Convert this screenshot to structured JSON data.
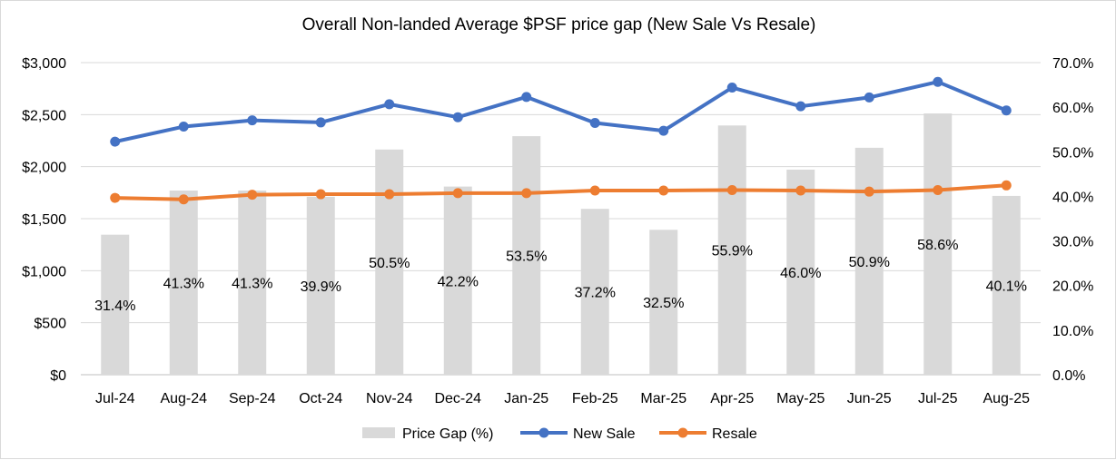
{
  "chart_data": {
    "type": "bar",
    "title": "Overall Non-landed Average $PSF price gap (New Sale Vs Resale)",
    "categories": [
      "Jul-24",
      "Aug-24",
      "Sep-24",
      "Oct-24",
      "Nov-24",
      "Dec-24",
      "Jan-25",
      "Feb-25",
      "Mar-25",
      "Apr-25",
      "May-25",
      "Jun-25",
      "Jul-25",
      "Aug-25"
    ],
    "left_axis": {
      "ylim": [
        0,
        3000
      ],
      "ticks": [
        0,
        500,
        1000,
        1500,
        2000,
        2500,
        3000
      ],
      "tick_labels": [
        "$0",
        "$500",
        "$1,000",
        "$1,500",
        "$2,000",
        "$2,500",
        "$3,000"
      ]
    },
    "right_axis": {
      "ylim": [
        0,
        70
      ],
      "ticks": [
        0,
        10,
        20,
        30,
        40,
        50,
        60,
        70
      ],
      "tick_labels": [
        "0.0%",
        "10.0%",
        "20.0%",
        "30.0%",
        "40.0%",
        "50.0%",
        "60.0%",
        "70.0%"
      ]
    },
    "series": [
      {
        "name": "Price Gap (%)",
        "type": "bar",
        "axis": "right",
        "color": "#d9d9d9",
        "values": [
          31.4,
          41.3,
          41.3,
          39.9,
          50.5,
          42.2,
          53.5,
          37.2,
          32.5,
          55.9,
          46.0,
          50.9,
          58.6,
          40.1
        ],
        "labels": [
          "31.4%",
          "41.3%",
          "41.3%",
          "39.9%",
          "50.5%",
          "42.2%",
          "53.5%",
          "37.2%",
          "32.5%",
          "55.9%",
          "46.0%",
          "50.9%",
          "58.6%",
          "40.1%"
        ]
      },
      {
        "name": "New Sale",
        "type": "line",
        "axis": "left",
        "color": "#4472c4",
        "values": [
          2240,
          2385,
          2445,
          2425,
          2600,
          2475,
          2670,
          2420,
          2345,
          2760,
          2580,
          2665,
          2815,
          2540
        ]
      },
      {
        "name": "Resale",
        "type": "line",
        "axis": "left",
        "color": "#ed7d31",
        "values": [
          1700,
          1685,
          1730,
          1735,
          1735,
          1745,
          1745,
          1770,
          1770,
          1775,
          1770,
          1760,
          1775,
          1820
        ]
      }
    ],
    "grid": true,
    "legend_position": "bottom"
  }
}
